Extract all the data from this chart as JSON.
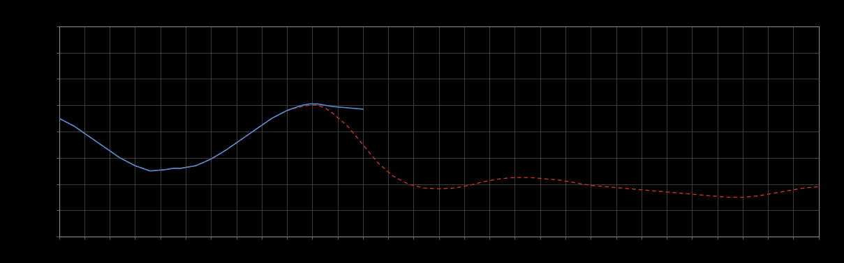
{
  "background_color": "#000000",
  "plot_bg_color": "#000000",
  "grid_color": "#555555",
  "blue_color": "#5588cc",
  "red_color": "#cc3322",
  "xlim": [
    0,
    100
  ],
  "ylim": [
    0,
    8
  ],
  "figsize": [
    12.09,
    3.78
  ],
  "dpi": 100,
  "blue_x": [
    0,
    2,
    4,
    6,
    8,
    10,
    12,
    14,
    15,
    16,
    18,
    20,
    22,
    24,
    26,
    28,
    30,
    31,
    32,
    33,
    34,
    35,
    36,
    38,
    40
  ],
  "blue_y": [
    4.5,
    4.2,
    3.8,
    3.4,
    3.0,
    2.7,
    2.5,
    2.55,
    2.6,
    2.6,
    2.7,
    2.95,
    3.3,
    3.7,
    4.1,
    4.5,
    4.8,
    4.9,
    5.0,
    5.05,
    5.05,
    5.0,
    4.95,
    4.9,
    4.85
  ],
  "red_x": [
    0,
    2,
    4,
    6,
    8,
    10,
    12,
    14,
    15,
    16,
    18,
    20,
    22,
    24,
    26,
    28,
    30,
    31,
    32,
    33,
    34,
    35,
    36,
    38,
    40,
    42,
    44,
    46,
    48,
    50,
    52,
    54,
    56,
    58,
    60,
    62,
    64,
    66,
    68,
    70,
    72,
    74,
    76,
    78,
    80,
    82,
    84,
    86,
    88,
    90,
    92,
    94,
    96,
    98,
    100
  ],
  "red_y": [
    4.5,
    4.2,
    3.8,
    3.4,
    3.0,
    2.7,
    2.5,
    2.55,
    2.6,
    2.6,
    2.7,
    2.95,
    3.3,
    3.7,
    4.1,
    4.5,
    4.8,
    4.88,
    4.95,
    5.0,
    5.0,
    4.9,
    4.7,
    4.2,
    3.5,
    2.8,
    2.3,
    2.0,
    1.85,
    1.82,
    1.85,
    1.95,
    2.1,
    2.2,
    2.25,
    2.25,
    2.2,
    2.15,
    2.05,
    1.95,
    1.9,
    1.85,
    1.8,
    1.75,
    1.7,
    1.65,
    1.6,
    1.55,
    1.5,
    1.5,
    1.55,
    1.65,
    1.75,
    1.85,
    1.9
  ],
  "n_xgrid": 30,
  "n_ygrid": 8
}
